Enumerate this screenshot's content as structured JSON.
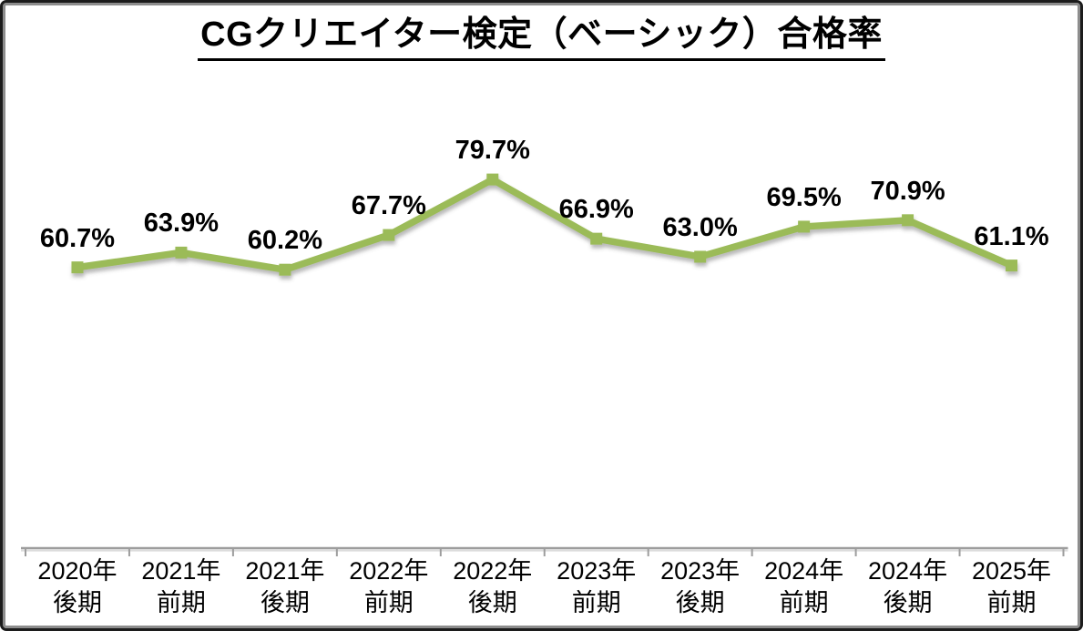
{
  "background": "#ffffff",
  "frame": {
    "border_color": "#1c1c1c",
    "inner_edge_color": "#8d8d8d"
  },
  "title": "CGクリエイター検定（ベーシック）合格率",
  "chart_data": {
    "type": "line",
    "title": "CGクリエイター検定（ベーシック）合格率",
    "categories": [
      "2020年後期",
      "2021年前期",
      "2021年後期",
      "2022年前期",
      "2022年後期",
      "2023年前期",
      "2023年後期",
      "2024年前期",
      "2024年後期",
      "2025年前期"
    ],
    "values": [
      60.7,
      63.9,
      60.2,
      67.7,
      79.7,
      66.9,
      63.0,
      69.5,
      70.9,
      61.1
    ],
    "value_labels": [
      "60.7%",
      "63.9%",
      "60.2%",
      "67.7%",
      "79.7%",
      "66.9%",
      "63.0%",
      "69.5%",
      "70.9%",
      "61.1%"
    ],
    "xlabel": "",
    "ylabel": "",
    "ylim": [
      0,
      100
    ],
    "grid": false,
    "legend": false,
    "line_color": "#9bbb59",
    "marker_shape": "square",
    "data_label_color": "#000000",
    "axis_line_color": "#9d9d9d",
    "tick_marks": true
  }
}
